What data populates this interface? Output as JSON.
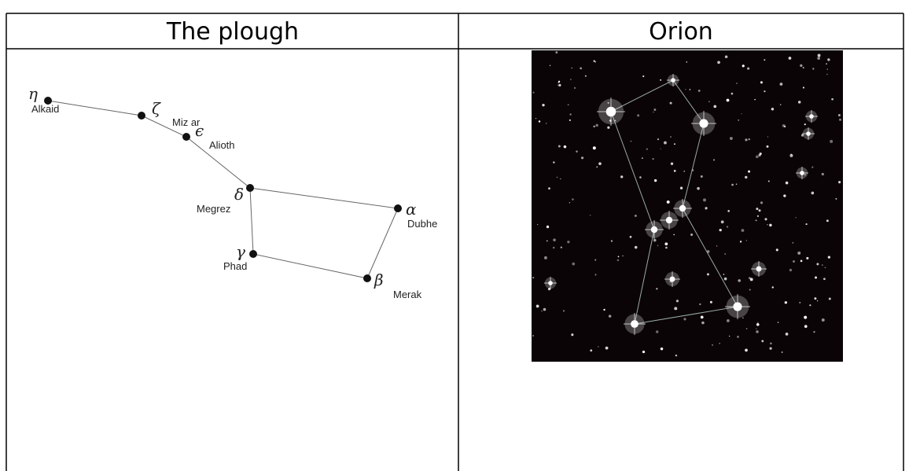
{
  "table": {
    "headers": [
      "The plough",
      "Orion"
    ]
  },
  "plough": {
    "stars": [
      {
        "letter": "η",
        "name": "Alkaid"
      },
      {
        "letter": "ζ",
        "name": "Miz ar"
      },
      {
        "letter": "ϵ",
        "name": "Alioth"
      },
      {
        "letter": "δ",
        "name": "Megrez"
      },
      {
        "letter": "α",
        "name": "Dubhe"
      },
      {
        "letter": "β",
        "name": "Merak"
      },
      {
        "letter": "γ",
        "name": "Phad"
      }
    ]
  }
}
